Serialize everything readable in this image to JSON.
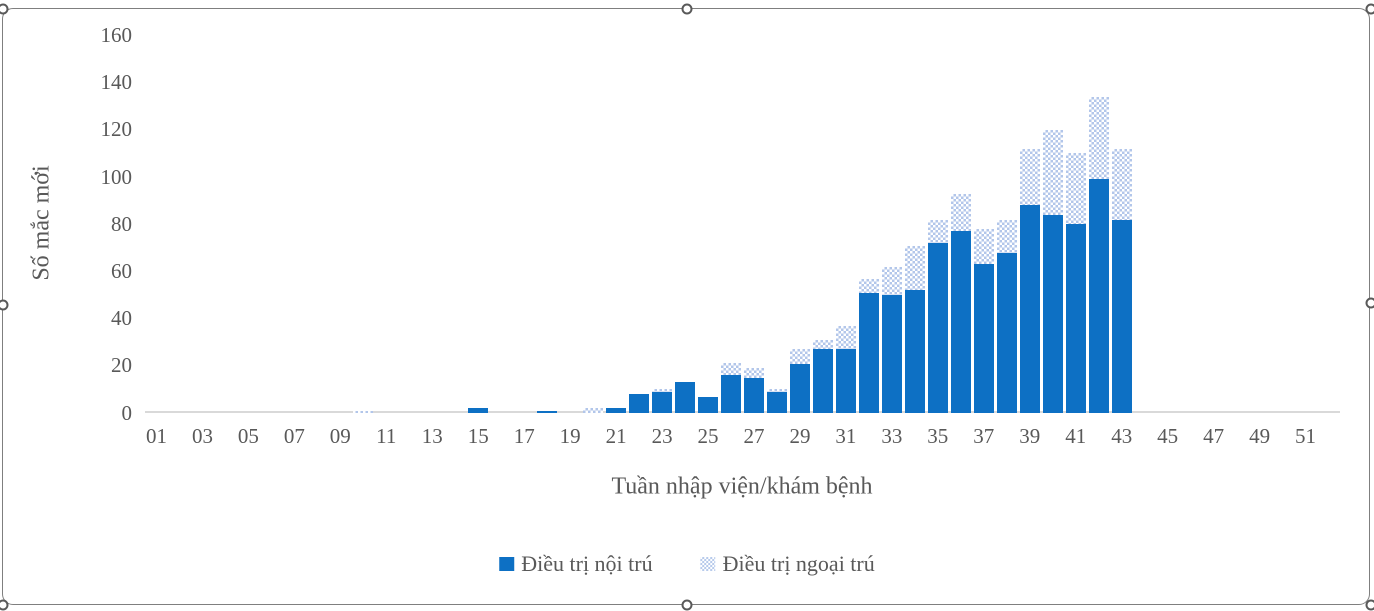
{
  "chart_data": {
    "type": "bar",
    "stacked": true,
    "title": "",
    "xlabel": "Tuần nhập viện/khám bệnh",
    "ylabel": "Số mắc mới",
    "ylim": [
      0,
      160
    ],
    "yticks": [
      0,
      20,
      40,
      60,
      80,
      100,
      120,
      140,
      160
    ],
    "xticklabels": [
      "01",
      "03",
      "05",
      "07",
      "09",
      "11",
      "13",
      "15",
      "17",
      "19",
      "21",
      "23",
      "25",
      "27",
      "29",
      "31",
      "33",
      "35",
      "37",
      "39",
      "41",
      "43",
      "45",
      "47",
      "49",
      "51"
    ],
    "categories": [
      "01",
      "02",
      "03",
      "04",
      "05",
      "06",
      "07",
      "08",
      "09",
      "10",
      "11",
      "12",
      "13",
      "14",
      "15",
      "16",
      "17",
      "18",
      "19",
      "20",
      "21",
      "22",
      "23",
      "24",
      "25",
      "26",
      "27",
      "28",
      "29",
      "30",
      "31",
      "32",
      "33",
      "34",
      "35",
      "36",
      "37",
      "38",
      "39",
      "40",
      "41",
      "42",
      "43",
      "44",
      "45",
      "46",
      "47",
      "48",
      "49",
      "50",
      "51",
      "52"
    ],
    "grid": false,
    "legend_position": "bottom",
    "series": [
      {
        "name": "Điều trị nội trú",
        "style": "solid",
        "color": "#0d70c4",
        "values": [
          0,
          0,
          0,
          0,
          0,
          0,
          0,
          0,
          0,
          0,
          0,
          0,
          0,
          0,
          2,
          0,
          0,
          1,
          0,
          0,
          2,
          8,
          9,
          13,
          7,
          16,
          15,
          9,
          21,
          27,
          27,
          51,
          50,
          52,
          72,
          77,
          63,
          68,
          88,
          84,
          80,
          99,
          82,
          0,
          0,
          0,
          0,
          0,
          0,
          0,
          0,
          0
        ]
      },
      {
        "name": "Điều trị ngoại trú",
        "style": "dotted-pattern",
        "color": "#b2c6ea",
        "values": [
          0,
          0,
          0,
          0,
          0,
          0,
          0,
          0,
          0,
          1,
          0,
          0,
          0,
          0,
          0,
          0,
          0,
          0,
          0,
          2,
          0,
          0,
          1,
          0,
          0,
          5,
          4,
          1,
          6,
          4,
          10,
          6,
          12,
          19,
          10,
          16,
          15,
          14,
          24,
          36,
          30,
          35,
          30,
          0,
          0,
          0,
          0,
          0,
          0,
          0,
          0,
          0
        ]
      }
    ]
  },
  "colors": {
    "inpatient_fill": "#0d70c4",
    "outpatient_pattern": "#b2c6ea",
    "axis_text": "#595959",
    "axis_line": "#d9d9d9",
    "selection_border": "#7f7f7f"
  }
}
